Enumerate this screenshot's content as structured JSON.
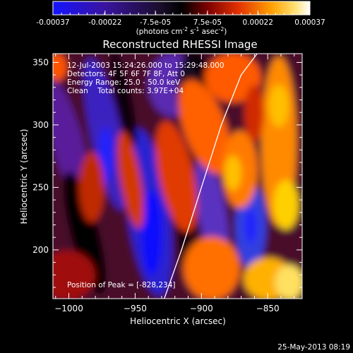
{
  "colorbar": {
    "ticks": [
      "-0.00037",
      "-0.00022",
      "-7.5e-05",
      "7.5e-05",
      "0.00022",
      "0.00037"
    ],
    "units_main": "(photons cm",
    "units_exp1": "-2",
    "units_mid": " s",
    "units_exp2": "-1",
    "units_tail": " asec",
    "units_exp3": "-2",
    "units_close": ")"
  },
  "info": {
    "time_range": "12-Jul-2003 15:24:26.000 to 15:29:48.000",
    "detectors": "Detectors: 4F 5F 6F 7F 8F, Att 0",
    "energy_range": "Energy Range: 25.0 - 50.0 keV",
    "clean_counts": "Clean    Total counts: 3.97E+04",
    "peak": "Position of Peak = [-828,234]"
  },
  "timestamp": "25-May-2013 08:19",
  "chart_data": {
    "type": "heatmap",
    "title": "Reconstructed RHESSI Image",
    "xlabel": "Heliocentric X (arcsec)",
    "ylabel": "Heliocentric Y (arcsec)",
    "xlim": [
      -1012,
      -824
    ],
    "ylim": [
      161,
      357
    ],
    "xticks": [
      -1000,
      -950,
      -900,
      -850
    ],
    "yticks": [
      200,
      250,
      300,
      350
    ],
    "xtick_labels": [
      "−1000",
      "−950",
      "−900",
      "−850"
    ],
    "ytick_labels": [
      "200",
      "250",
      "300",
      "350"
    ],
    "color_range": [
      -0.00037,
      0.00037
    ],
    "colormap": [
      "#0000ff",
      "#1b00b0",
      "#3a0a70",
      "#000000",
      "#5a0000",
      "#c02000",
      "#ff6a00",
      "#ffb800",
      "#ffffff"
    ],
    "limb_curve": {
      "x": [
        -928,
        -915,
        -900,
        -885,
        -870,
        -858
      ],
      "y": [
        161,
        200,
        250,
        300,
        340,
        357
      ],
      "color": "#ffffff"
    },
    "peak_position": [
      -828,
      234
    ]
  }
}
